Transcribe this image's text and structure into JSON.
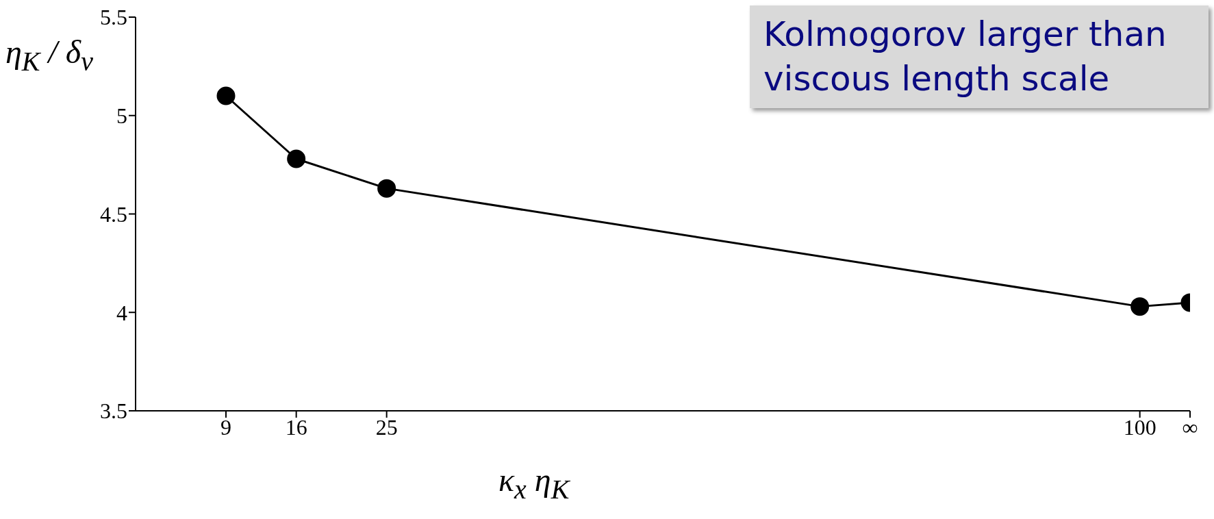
{
  "chart_data": {
    "type": "line",
    "xlabel": "κ$_{x}$ η$_{K}$",
    "ylabel": "η$_{K}$ / δ$_{v}$",
    "x": [
      9,
      16,
      25,
      100,
      105
    ],
    "series": [
      {
        "color": "#000000",
        "values": [
          5.1,
          4.78,
          4.63,
          4.03,
          4.05
        ]
      }
    ],
    "xlim": [
      0,
      105
    ],
    "xticks": [
      9,
      16,
      25,
      100,
      {
        "value": 105,
        "label": "∞"
      }
    ],
    "ylim": [
      3.5,
      5.5
    ],
    "yticks": [
      3.5,
      4,
      4.5,
      5,
      5.5
    ],
    "grid": false,
    "marker": "circle",
    "line_style": "solid",
    "annotations": [
      "Kolmogorov larger than viscous length scale"
    ]
  }
}
